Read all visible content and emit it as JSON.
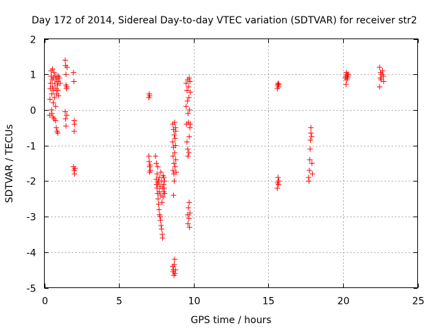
{
  "chart_data": {
    "type": "scatter",
    "title": "Day 172 of 2014, Sidereal Day-to-day VTEC variation (SDTVAR) for receiver str2",
    "xlabel": "GPS time / hours",
    "ylabel": "SDTVAR / TECUs",
    "xlim": [
      0,
      25
    ],
    "ylim": [
      -5,
      2
    ],
    "xticks": [
      "0",
      "5",
      "10",
      "15",
      "20",
      "25"
    ],
    "xtick_values": [
      0,
      5,
      10,
      15,
      20,
      25
    ],
    "yticks": [
      "2",
      "1",
      "0",
      "-1",
      "-2",
      "-3",
      "-4",
      "-5"
    ],
    "ytick_values": [
      2,
      1,
      0,
      -1,
      -2,
      -3,
      -4,
      -5
    ],
    "grid": true,
    "marker": "+",
    "marker_color": "#ff0000",
    "series": [
      {
        "name": "SDTVAR",
        "points": [
          [
            0.35,
            -0.15
          ],
          [
            0.38,
            0.3
          ],
          [
            0.4,
            0.6
          ],
          [
            0.42,
            0.75
          ],
          [
            0.45,
            0.95
          ],
          [
            0.45,
            1.1
          ],
          [
            0.48,
            0.0
          ],
          [
            0.5,
            -0.1
          ],
          [
            0.5,
            0.45
          ],
          [
            0.52,
            0.85
          ],
          [
            0.55,
            1.15
          ],
          [
            0.55,
            0.65
          ],
          [
            0.58,
            -0.2
          ],
          [
            0.6,
            0.2
          ],
          [
            0.6,
            0.9
          ],
          [
            0.62,
            0.55
          ],
          [
            0.65,
            1.05
          ],
          [
            0.65,
            -0.25
          ],
          [
            0.68,
            0.35
          ],
          [
            0.7,
            0.75
          ],
          [
            0.72,
            0.95
          ],
          [
            0.75,
            0.1
          ],
          [
            0.75,
            -0.3
          ],
          [
            0.78,
            0.6
          ],
          [
            0.8,
            0.85
          ],
          [
            0.8,
            -0.5
          ],
          [
            0.82,
            0.45
          ],
          [
            0.85,
            0.95
          ],
          [
            0.85,
            -0.6
          ],
          [
            0.88,
            0.7
          ],
          [
            0.9,
            -0.65
          ],
          [
            0.9,
            0.55
          ],
          [
            0.92,
            0.8
          ],
          [
            0.95,
            0.95
          ],
          [
            0.95,
            0.4
          ],
          [
            1.0,
            0.9
          ],
          [
            1.05,
            0.75
          ],
          [
            1.4,
            1.4
          ],
          [
            1.42,
            1.25
          ],
          [
            1.45,
            1.0
          ],
          [
            1.45,
            0.7
          ],
          [
            1.48,
            0.6
          ],
          [
            1.4,
            -0.05
          ],
          [
            1.42,
            -0.25
          ],
          [
            1.45,
            -0.45
          ],
          [
            1.5,
            -0.15
          ],
          [
            1.5,
            0.65
          ],
          [
            1.52,
            1.2
          ],
          [
            1.95,
            1.05
          ],
          [
            1.98,
            0.8
          ],
          [
            2.0,
            -0.3
          ],
          [
            2.0,
            -0.6
          ],
          [
            2.02,
            -0.4
          ],
          [
            1.95,
            -1.6
          ],
          [
            2.0,
            -1.7
          ],
          [
            2.02,
            -1.8
          ],
          [
            2.05,
            -1.65
          ],
          [
            7.0,
            0.35
          ],
          [
            7.02,
            0.45
          ],
          [
            7.05,
            0.4
          ],
          [
            7.0,
            -1.3
          ],
          [
            7.02,
            -1.45
          ],
          [
            7.05,
            -1.6
          ],
          [
            7.05,
            -1.75
          ],
          [
            7.08,
            -1.55
          ],
          [
            7.1,
            -1.7
          ],
          [
            7.45,
            -1.3
          ],
          [
            7.5,
            -1.5
          ],
          [
            7.5,
            -1.95
          ],
          [
            7.52,
            -2.1
          ],
          [
            7.55,
            -1.8
          ],
          [
            7.55,
            -2.2
          ],
          [
            7.58,
            -2.35
          ],
          [
            7.6,
            -2.05
          ],
          [
            7.6,
            -1.6
          ],
          [
            7.62,
            -2.5
          ],
          [
            7.65,
            -2.65
          ],
          [
            7.65,
            -2.0
          ],
          [
            7.68,
            -2.8
          ],
          [
            7.7,
            -2.3
          ],
          [
            7.7,
            -1.9
          ],
          [
            7.72,
            -2.95
          ],
          [
            7.75,
            -3.0
          ],
          [
            7.75,
            -2.15
          ],
          [
            7.78,
            -3.1
          ],
          [
            7.8,
            -1.75
          ],
          [
            7.8,
            -2.4
          ],
          [
            7.82,
            -3.25
          ],
          [
            7.85,
            -2.0
          ],
          [
            7.85,
            -3.35
          ],
          [
            7.88,
            -2.6
          ],
          [
            7.9,
            -3.5
          ],
          [
            7.9,
            -2.2
          ],
          [
            7.92,
            -3.6
          ],
          [
            7.95,
            -1.85
          ],
          [
            7.95,
            -2.45
          ],
          [
            7.98,
            -2.1
          ],
          [
            8.0,
            -2.3
          ],
          [
            8.0,
            -1.9
          ],
          [
            8.02,
            -2.2
          ],
          [
            8.05,
            -2.0
          ],
          [
            8.05,
            -2.35
          ],
          [
            8.6,
            -0.4
          ],
          [
            8.6,
            -0.9
          ],
          [
            8.62,
            -1.3
          ],
          [
            8.62,
            -1.7
          ],
          [
            8.65,
            -0.55
          ],
          [
            8.65,
            -1.05
          ],
          [
            8.68,
            -1.5
          ],
          [
            8.68,
            -1.8
          ],
          [
            8.7,
            -0.7
          ],
          [
            8.7,
            -2.0
          ],
          [
            8.72,
            -0.35
          ],
          [
            8.72,
            -1.2
          ],
          [
            8.75,
            -0.8
          ],
          [
            8.75,
            -1.6
          ],
          [
            8.78,
            -0.5
          ],
          [
            8.78,
            -1.0
          ],
          [
            8.8,
            -1.4
          ],
          [
            8.8,
            -0.6
          ],
          [
            8.82,
            -1.75
          ],
          [
            8.65,
            -2.4
          ],
          [
            8.6,
            -4.4
          ],
          [
            8.62,
            -4.55
          ],
          [
            8.65,
            -4.5
          ],
          [
            8.68,
            -4.65
          ],
          [
            8.7,
            -4.35
          ],
          [
            8.72,
            -4.2
          ],
          [
            8.75,
            -4.6
          ],
          [
            8.78,
            -4.5
          ],
          [
            9.5,
            0.75
          ],
          [
            9.5,
            0.1
          ],
          [
            9.52,
            -0.4
          ],
          [
            9.55,
            0.55
          ],
          [
            9.55,
            -0.9
          ],
          [
            9.58,
            0.25
          ],
          [
            9.6,
            -1.1
          ],
          [
            9.6,
            0.85
          ],
          [
            9.62,
            -0.1
          ],
          [
            9.62,
            -1.3
          ],
          [
            9.65,
            0.65
          ],
          [
            9.65,
            -0.35
          ],
          [
            9.68,
            0.35
          ],
          [
            9.68,
            -1.2
          ],
          [
            9.7,
            0.9
          ],
          [
            9.7,
            -0.75
          ],
          [
            9.72,
            0.0
          ],
          [
            9.75,
            0.8
          ],
          [
            9.75,
            -0.5
          ],
          [
            9.78,
            0.5
          ],
          [
            9.78,
            -0.4
          ],
          [
            9.6,
            -2.95
          ],
          [
            9.62,
            -3.2
          ],
          [
            9.65,
            -2.75
          ],
          [
            9.68,
            -3.05
          ],
          [
            9.7,
            -2.6
          ],
          [
            9.72,
            -3.3
          ],
          [
            9.75,
            -2.9
          ],
          [
            15.6,
            0.6
          ],
          [
            15.62,
            0.7
          ],
          [
            15.65,
            0.75
          ],
          [
            15.68,
            0.65
          ],
          [
            15.7,
            0.72
          ],
          [
            15.6,
            -2.2
          ],
          [
            15.62,
            -2.05
          ],
          [
            15.65,
            -1.9
          ],
          [
            15.68,
            -2.1
          ],
          [
            15.7,
            -2.0
          ],
          [
            17.7,
            -1.9
          ],
          [
            17.72,
            -2.0
          ],
          [
            17.75,
            -1.7
          ],
          [
            17.78,
            -1.4
          ],
          [
            17.8,
            -1.1
          ],
          [
            17.82,
            -0.85
          ],
          [
            17.85,
            -0.65
          ],
          [
            17.85,
            -0.5
          ],
          [
            17.9,
            -0.75
          ],
          [
            17.92,
            -1.5
          ],
          [
            17.95,
            -1.8
          ],
          [
            20.15,
            0.9
          ],
          [
            20.2,
            0.95
          ],
          [
            20.2,
            0.72
          ],
          [
            20.22,
            1.05
          ],
          [
            20.25,
            0.85
          ],
          [
            20.28,
            1.0
          ],
          [
            20.3,
            0.9
          ],
          [
            20.32,
            0.95
          ],
          [
            20.35,
            1.0
          ],
          [
            22.45,
            1.2
          ],
          [
            22.45,
            0.65
          ],
          [
            22.5,
            0.9
          ],
          [
            22.52,
            1.05
          ],
          [
            22.55,
            0.85
          ],
          [
            22.6,
            1.0
          ],
          [
            22.65,
            1.1
          ],
          [
            22.7,
            0.95
          ],
          [
            22.72,
            0.8
          ]
        ]
      }
    ]
  }
}
